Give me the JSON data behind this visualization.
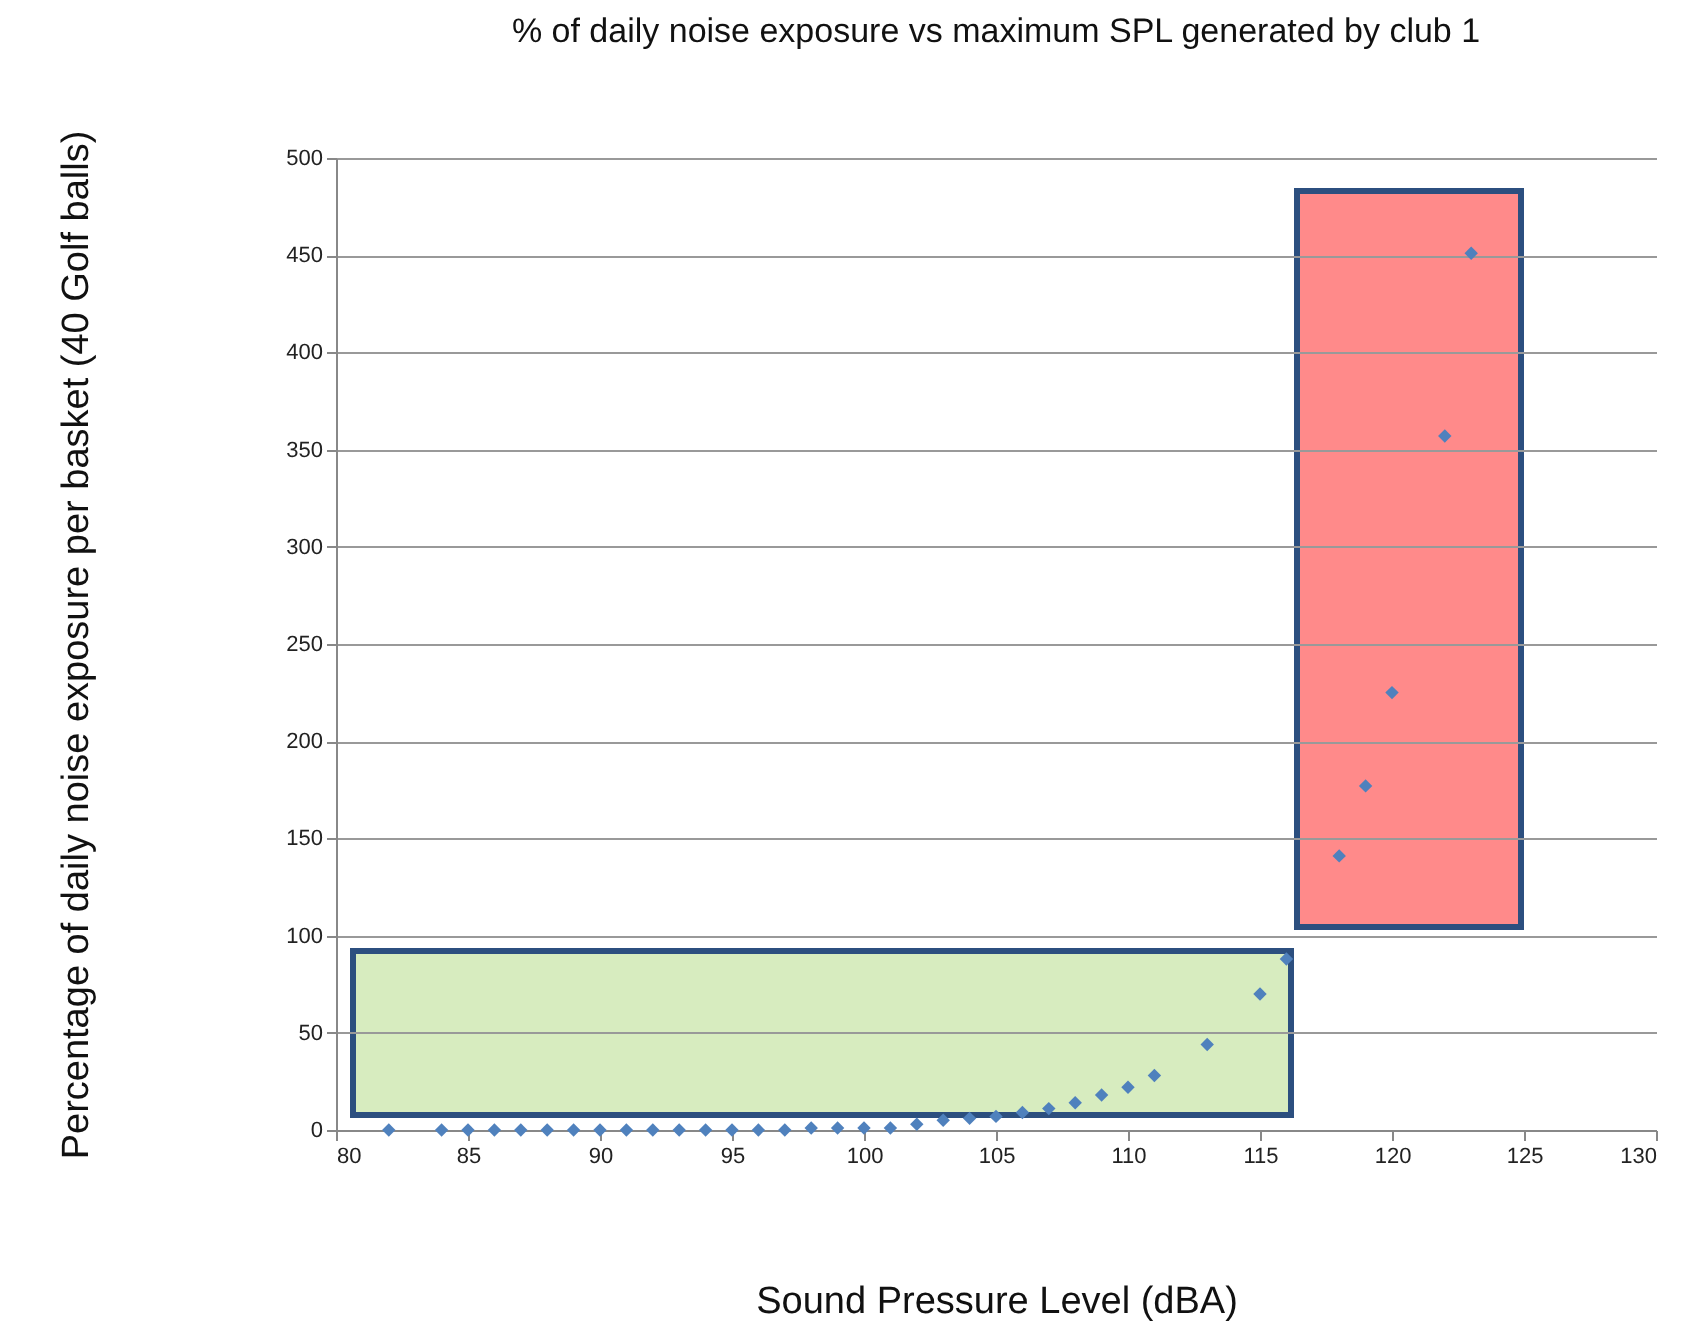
{
  "chart_data": {
    "type": "scatter",
    "title": "% of daily noise exposure vs maximum SPL generated by club 1",
    "xlabel": "Sound Pressure Level (dBA)",
    "ylabel": "Percentage of daily noise exposure per basket (40 Golf balls)",
    "x": [
      82,
      84,
      85,
      86,
      87,
      88,
      89,
      90,
      91,
      92,
      93,
      94,
      95,
      96,
      97,
      98,
      99,
      100,
      101,
      102,
      103,
      104,
      105,
      106,
      107,
      108,
      109,
      110,
      111,
      113,
      115,
      116,
      118,
      119,
      120,
      122,
      123
    ],
    "series": [
      {
        "color": "#4f81bd",
        "values": [
          0,
          0,
          0,
          0,
          0,
          0,
          0,
          0,
          0,
          0,
          0,
          0,
          0,
          0,
          0,
          1,
          1,
          1,
          1,
          3,
          5,
          6,
          7,
          9,
          11,
          14,
          18,
          22,
          28,
          44,
          70,
          88,
          141,
          177,
          225,
          357,
          451
        ]
      }
    ],
    "xlim": [
      80,
      130
    ],
    "xticks": [
      80,
      85,
      90,
      95,
      100,
      105,
      110,
      115,
      120,
      125,
      130
    ],
    "ylim": [
      0,
      500
    ],
    "yticks": [
      0,
      50,
      100,
      150,
      200,
      250,
      300,
      350,
      400,
      450,
      500
    ],
    "grid": "y",
    "marker": "diamond"
  }
}
